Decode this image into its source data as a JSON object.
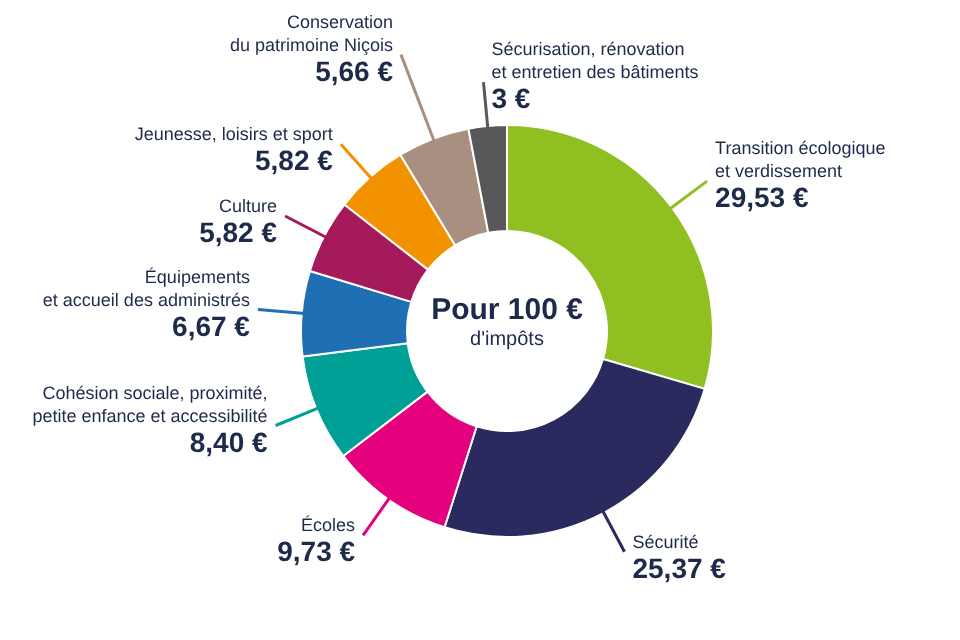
{
  "chart_data": {
    "type": "donut",
    "title": "Pour 100 €",
    "subtitle": "d'impôts",
    "categories": [
      "Transition écologique\net verdissement",
      "Sécurité",
      "Écoles",
      "Cohésion sociale, proximité,\npetite enfance et accessibilité",
      "Équipements\net accueil des administrés",
      "Culture",
      "Jeunesse, loisirs et sport",
      "Conservation\ndu patrimoine Niçois",
      "Sécurisation, rénovation\net entretien des bâtiments"
    ],
    "values": [
      29.53,
      25.37,
      9.73,
      8.4,
      6.67,
      5.82,
      5.82,
      5.66,
      3
    ],
    "value_labels": [
      "29,53 €",
      "25,37 €",
      "9,73 €",
      "8,40 €",
      "6,67 €",
      "5,82 €",
      "5,82 €",
      "5,66 €",
      "3 €"
    ],
    "colors": [
      "#8fbf21",
      "#2a2a5e",
      "#e5007e",
      "#00a096",
      "#1f6fb5",
      "#a51a5a",
      "#f39200",
      "#a88f80",
      "#58585a"
    ]
  }
}
